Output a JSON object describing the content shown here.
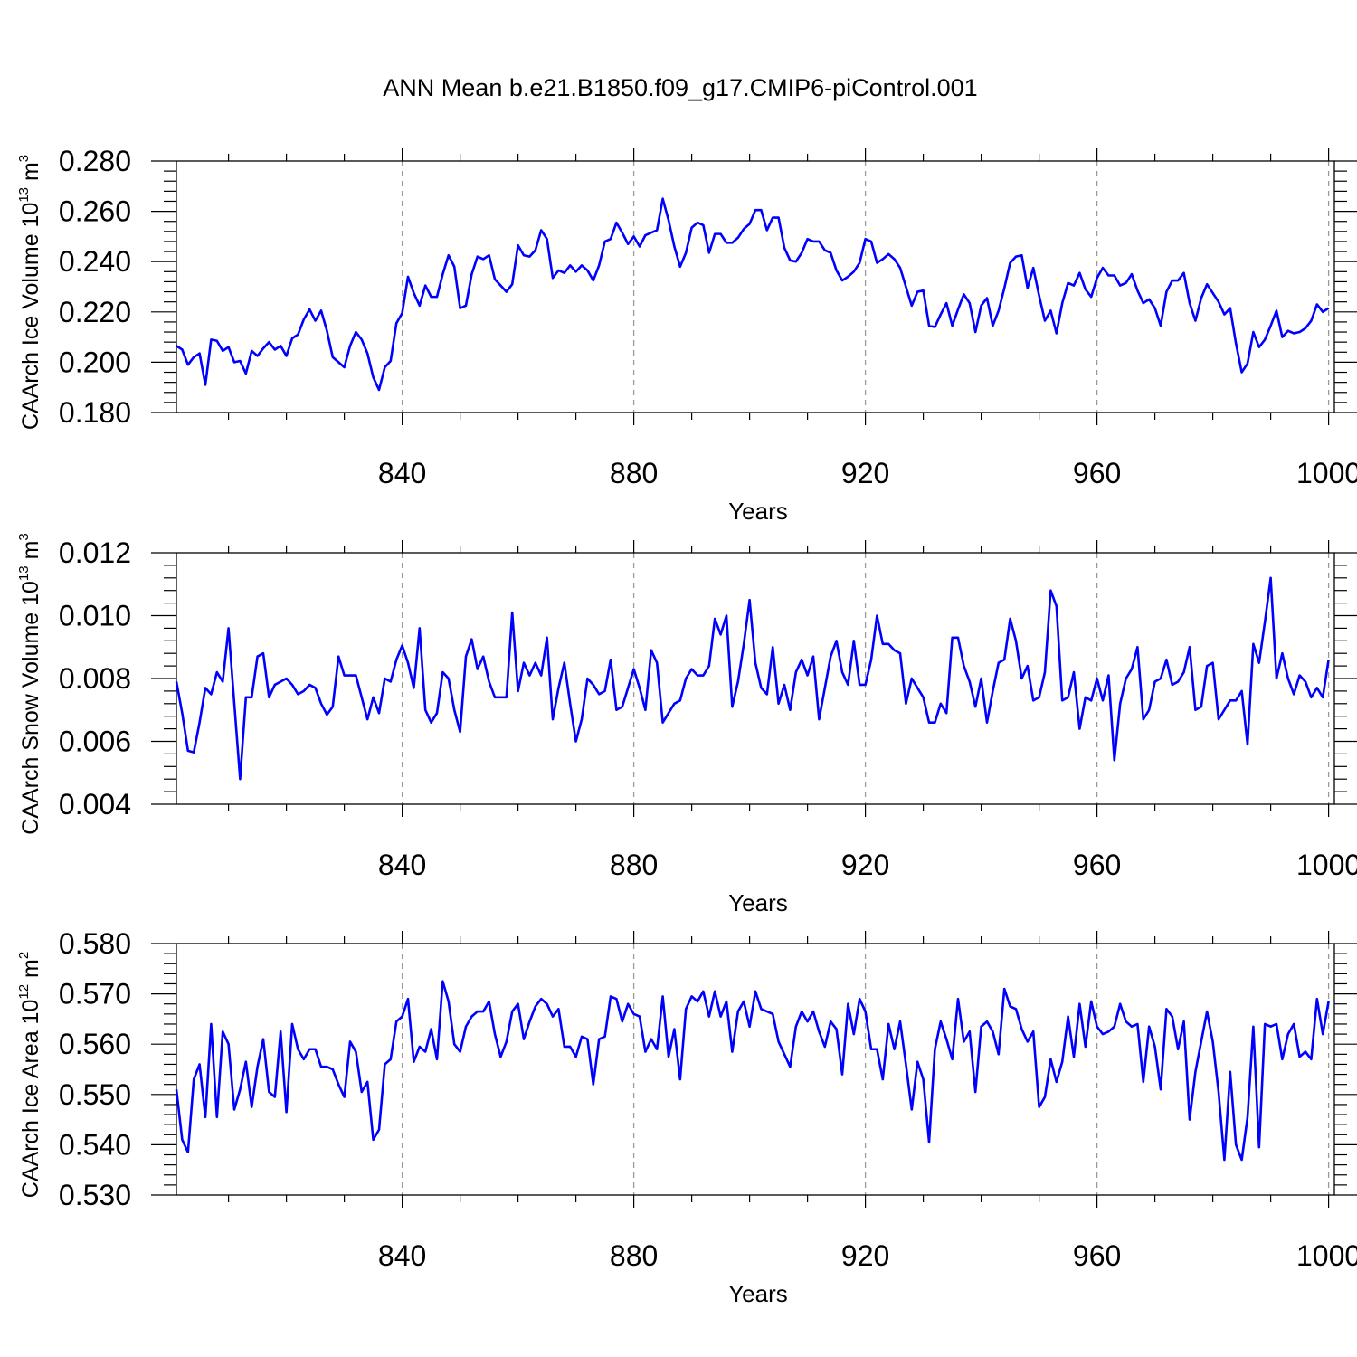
{
  "title": "ANN Mean b.e21.B1850.f09_g17.CMIP6-piControl.001",
  "chart_data": [
    {
      "type": "line",
      "xlabel": "Years",
      "ylabel": "CAArch Ice Volume 10",
      "ylabel_exp": "13",
      "ylabel_unit": " m",
      "ylabel_unit_exp": "3",
      "xlim": [
        801,
        1001
      ],
      "xticks": [
        840,
        880,
        920,
        960,
        1000
      ],
      "xtick_labels": [
        "840",
        "880",
        "920",
        "960",
        "1000"
      ],
      "ylim": [
        0.18,
        0.28
      ],
      "yticks": [
        0.18,
        0.2,
        0.22,
        0.24,
        0.26,
        0.28
      ],
      "ytick_labels": [
        "0.180",
        "0.200",
        "0.220",
        "0.240",
        "0.260",
        "0.280"
      ],
      "series": [
        {
          "name": "CAArch Ice Volume",
          "color": "#0000ff",
          "x_start": 801,
          "x_step": 1,
          "values": [
            0.2065,
            0.205,
            0.199,
            0.202,
            0.2035,
            0.191,
            0.209,
            0.2085,
            0.2045,
            0.206,
            0.2,
            0.2005,
            0.1955,
            0.2045,
            0.2025,
            0.2055,
            0.208,
            0.205,
            0.2065,
            0.2025,
            0.2095,
            0.211,
            0.217,
            0.221,
            0.2165,
            0.2205,
            0.2125,
            0.202,
            0.2,
            0.198,
            0.2065,
            0.212,
            0.209,
            0.2035,
            0.194,
            0.189,
            0.198,
            0.2005,
            0.2155,
            0.2195,
            0.234,
            0.2275,
            0.2225,
            0.2305,
            0.226,
            0.226,
            0.235,
            0.2425,
            0.238,
            0.2215,
            0.2225,
            0.235,
            0.242,
            0.241,
            0.2425,
            0.233,
            0.2305,
            0.228,
            0.231,
            0.2465,
            0.2425,
            0.242,
            0.2445,
            0.2525,
            0.249,
            0.2335,
            0.2365,
            0.2355,
            0.2385,
            0.236,
            0.2385,
            0.2365,
            0.2325,
            0.2385,
            0.248,
            0.249,
            0.2555,
            0.2515,
            0.247,
            0.25,
            0.246,
            0.2505,
            0.2515,
            0.2525,
            0.265,
            0.2565,
            0.246,
            0.238,
            0.2435,
            0.2535,
            0.2555,
            0.2545,
            0.2435,
            0.251,
            0.251,
            0.2475,
            0.2475,
            0.2495,
            0.253,
            0.255,
            0.2605,
            0.2605,
            0.2525,
            0.2575,
            0.2575,
            0.2455,
            0.2405,
            0.24,
            0.2435,
            0.249,
            0.248,
            0.248,
            0.2445,
            0.2435,
            0.2365,
            0.2325,
            0.234,
            0.236,
            0.2395,
            0.249,
            0.248,
            0.2395,
            0.241,
            0.243,
            0.241,
            0.2375,
            0.23,
            0.2225,
            0.228,
            0.2285,
            0.2145,
            0.214,
            0.219,
            0.2235,
            0.2145,
            0.221,
            0.227,
            0.2235,
            0.212,
            0.2225,
            0.2255,
            0.2145,
            0.2205,
            0.2295,
            0.2395,
            0.242,
            0.2425,
            0.2295,
            0.2375,
            0.2265,
            0.2165,
            0.2205,
            0.2115,
            0.2235,
            0.2315,
            0.2305,
            0.2355,
            0.229,
            0.226,
            0.2335,
            0.2375,
            0.2345,
            0.2345,
            0.2305,
            0.2315,
            0.235,
            0.2285,
            0.2235,
            0.225,
            0.2215,
            0.2145,
            0.228,
            0.2325,
            0.2325,
            0.2355,
            0.2235,
            0.2165,
            0.2255,
            0.231,
            0.2275,
            0.224,
            0.219,
            0.2215,
            0.2075,
            0.196,
            0.1995,
            0.212,
            0.206,
            0.209,
            0.2145,
            0.2205,
            0.21,
            0.2125,
            0.2115,
            0.212,
            0.2135,
            0.2165,
            0.223,
            0.22,
            0.2215
          ]
        }
      ]
    },
    {
      "type": "line",
      "xlabel": "Years",
      "ylabel": "CAArch Snow Volume 10",
      "ylabel_exp": "13",
      "ylabel_unit": " m",
      "ylabel_unit_exp": "3",
      "xlim": [
        801,
        1001
      ],
      "xticks": [
        840,
        880,
        920,
        960,
        1000
      ],
      "xtick_labels": [
        "840",
        "880",
        "920",
        "960",
        "1000"
      ],
      "ylim": [
        0.004,
        0.012
      ],
      "yticks": [
        0.004,
        0.006,
        0.008,
        0.01,
        0.012
      ],
      "ytick_labels": [
        "0.004",
        "0.006",
        "0.008",
        "0.010",
        "0.012"
      ],
      "series": [
        {
          "name": "CAArch Snow Volume",
          "color": "#0000ff",
          "x_start": 801,
          "x_step": 1,
          "values": [
            0.0079,
            0.0069,
            0.0057,
            0.00565,
            0.0066,
            0.0077,
            0.0075,
            0.0082,
            0.0079,
            0.0096,
            0.0072,
            0.0048,
            0.0074,
            0.0074,
            0.0087,
            0.0088,
            0.0074,
            0.0078,
            0.0079,
            0.008,
            0.0078,
            0.0075,
            0.0076,
            0.0078,
            0.0077,
            0.0072,
            0.00685,
            0.0071,
            0.0087,
            0.0081,
            0.0081,
            0.0081,
            0.0074,
            0.0067,
            0.0074,
            0.0069,
            0.008,
            0.0079,
            0.0086,
            0.00905,
            0.0085,
            0.0077,
            0.0096,
            0.007,
            0.0066,
            0.0069,
            0.0082,
            0.008,
            0.007,
            0.0063,
            0.0087,
            0.00925,
            0.0083,
            0.0087,
            0.0079,
            0.0074,
            0.0074,
            0.0074,
            0.0101,
            0.0076,
            0.0085,
            0.0081,
            0.0085,
            0.0081,
            0.0093,
            0.0067,
            0.0077,
            0.0085,
            0.0072,
            0.006,
            0.0067,
            0.008,
            0.0078,
            0.0075,
            0.0076,
            0.0086,
            0.007,
            0.0071,
            0.0077,
            0.0083,
            0.0077,
            0.007,
            0.0089,
            0.0085,
            0.0066,
            0.0069,
            0.0072,
            0.0073,
            0.008,
            0.0083,
            0.0081,
            0.0081,
            0.0084,
            0.0099,
            0.0094,
            0.01,
            0.0071,
            0.0079,
            0.0091,
            0.0105,
            0.0085,
            0.0077,
            0.0075,
            0.009,
            0.0072,
            0.0078,
            0.007,
            0.0082,
            0.0086,
            0.0081,
            0.0087,
            0.0067,
            0.0077,
            0.0087,
            0.0092,
            0.0082,
            0.0078,
            0.0092,
            0.0078,
            0.0078,
            0.0086,
            0.01,
            0.0091,
            0.0091,
            0.0089,
            0.0088,
            0.0072,
            0.008,
            0.0077,
            0.0074,
            0.0066,
            0.0066,
            0.0072,
            0.0069,
            0.0093,
            0.0093,
            0.0084,
            0.0079,
            0.0071,
            0.008,
            0.0066,
            0.0076,
            0.0085,
            0.0086,
            0.0099,
            0.0092,
            0.008,
            0.0084,
            0.0073,
            0.0074,
            0.0082,
            0.0108,
            0.0103,
            0.0073,
            0.0074,
            0.0082,
            0.0064,
            0.0074,
            0.0073,
            0.008,
            0.0073,
            0.0081,
            0.0054,
            0.0072,
            0.008,
            0.0083,
            0.009,
            0.0067,
            0.007,
            0.0079,
            0.008,
            0.0086,
            0.0078,
            0.0079,
            0.0082,
            0.009,
            0.007,
            0.0071,
            0.0084,
            0.0085,
            0.0067,
            0.007,
            0.0073,
            0.0073,
            0.0076,
            0.0059,
            0.0091,
            0.0085,
            0.0098,
            0.0112,
            0.008,
            0.0088,
            0.008,
            0.0075,
            0.0081,
            0.0079,
            0.0074,
            0.0077,
            0.0074,
            0.0086
          ]
        }
      ]
    },
    {
      "type": "line",
      "xlabel": "Years",
      "ylabel": "CAArch Ice Area 10",
      "ylabel_exp": "12",
      "ylabel_unit": " m",
      "ylabel_unit_exp": "2",
      "xlim": [
        801,
        1001
      ],
      "xticks": [
        840,
        880,
        920,
        960,
        1000
      ],
      "xtick_labels": [
        "840",
        "880",
        "920",
        "960",
        "1000"
      ],
      "ylim": [
        0.53,
        0.58
      ],
      "yticks": [
        0.53,
        0.54,
        0.55,
        0.56,
        0.57,
        0.58
      ],
      "ytick_labels": [
        "0.530",
        "0.540",
        "0.550",
        "0.560",
        "0.570",
        "0.580"
      ],
      "series": [
        {
          "name": "CAArch Ice Area",
          "color": "#0000ff",
          "x_start": 801,
          "x_step": 1,
          "values": [
            0.551,
            0.541,
            0.5385,
            0.553,
            0.556,
            0.5455,
            0.564,
            0.5455,
            0.5625,
            0.56,
            0.547,
            0.551,
            0.5565,
            0.5475,
            0.5555,
            0.561,
            0.5505,
            0.5495,
            0.5625,
            0.5465,
            0.564,
            0.559,
            0.557,
            0.559,
            0.559,
            0.5555,
            0.5555,
            0.555,
            0.552,
            0.5495,
            0.5605,
            0.5585,
            0.5505,
            0.5525,
            0.541,
            0.543,
            0.556,
            0.557,
            0.5645,
            0.5655,
            0.569,
            0.5565,
            0.5595,
            0.5585,
            0.563,
            0.557,
            0.5725,
            0.5685,
            0.56,
            0.5585,
            0.5635,
            0.5655,
            0.5665,
            0.5665,
            0.5685,
            0.562,
            0.5575,
            0.5605,
            0.5665,
            0.568,
            0.561,
            0.5645,
            0.5675,
            0.569,
            0.568,
            0.5655,
            0.567,
            0.5595,
            0.5595,
            0.5575,
            0.5615,
            0.561,
            0.552,
            0.561,
            0.5615,
            0.5695,
            0.569,
            0.5645,
            0.568,
            0.566,
            0.5655,
            0.5585,
            0.561,
            0.559,
            0.5695,
            0.5575,
            0.563,
            0.553,
            0.567,
            0.5695,
            0.5685,
            0.5705,
            0.5655,
            0.5705,
            0.5655,
            0.5685,
            0.5585,
            0.5665,
            0.5685,
            0.5635,
            0.5705,
            0.567,
            0.5665,
            0.566,
            0.5605,
            0.558,
            0.5555,
            0.5635,
            0.5665,
            0.5645,
            0.5665,
            0.5625,
            0.5595,
            0.5645,
            0.563,
            0.554,
            0.568,
            0.562,
            0.569,
            0.5665,
            0.559,
            0.559,
            0.553,
            0.564,
            0.559,
            0.5645,
            0.556,
            0.547,
            0.5565,
            0.553,
            0.5405,
            0.559,
            0.5645,
            0.561,
            0.557,
            0.569,
            0.5605,
            0.5625,
            0.5505,
            0.5635,
            0.5645,
            0.5625,
            0.558,
            0.571,
            0.5675,
            0.567,
            0.563,
            0.5605,
            0.5625,
            0.5475,
            0.5495,
            0.557,
            0.5525,
            0.5565,
            0.5655,
            0.5575,
            0.568,
            0.5595,
            0.5685,
            0.5635,
            0.562,
            0.5625,
            0.5635,
            0.568,
            0.5645,
            0.5635,
            0.564,
            0.5525,
            0.5635,
            0.5595,
            0.551,
            0.567,
            0.5655,
            0.559,
            0.5645,
            0.545,
            0.5545,
            0.5605,
            0.5665,
            0.5605,
            0.5505,
            0.537,
            0.5545,
            0.54,
            0.537,
            0.5455,
            0.5635,
            0.5395,
            0.564,
            0.5635,
            0.564,
            0.557,
            0.562,
            0.564,
            0.5575,
            0.5585,
            0.557,
            0.569,
            0.562,
            0.5685
          ]
        }
      ]
    }
  ]
}
